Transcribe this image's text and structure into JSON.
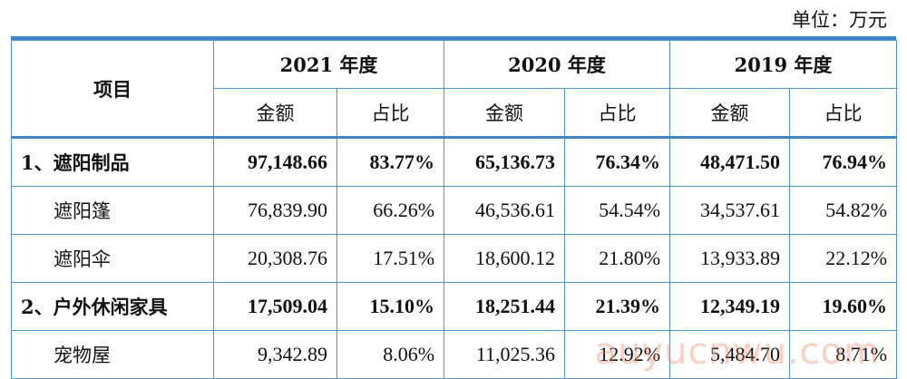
{
  "unit_label": "单位：万元",
  "header": {
    "item": "项目",
    "years": [
      "2021 年度",
      "2020 年度",
      "2019 年度"
    ],
    "amount": "金额",
    "ratio": "占比"
  },
  "rows": [
    {
      "name": "1、遮阳制品",
      "bold": true,
      "cells": [
        "97,148.66",
        "83.77%",
        "65,136.73",
        "76.34%",
        "48,471.50",
        "76.94%"
      ]
    },
    {
      "name": "遮阳篷",
      "bold": false,
      "cells": [
        "76,839.90",
        "66.26%",
        "46,536.61",
        "54.54%",
        "34,537.61",
        "54.82%"
      ]
    },
    {
      "name": "遮阳伞",
      "bold": false,
      "cells": [
        "20,308.76",
        "17.51%",
        "18,600.12",
        "21.80%",
        "13,933.89",
        "22.12%"
      ]
    },
    {
      "name": "2、户外休闲家具",
      "bold": true,
      "cells": [
        "17,509.04",
        "15.10%",
        "18,251.44",
        "21.39%",
        "12,349.19",
        "19.60%"
      ]
    },
    {
      "name": "宠物屋",
      "bold": false,
      "cells": [
        "9,342.89",
        "8.06%",
        "11,025.36",
        "12.92%",
        "5,484.70",
        "8.71%"
      ]
    }
  ],
  "watermark": "auyucnwu.com",
  "colors": {
    "rule": "#3a86c8",
    "grid": "#4f95d0"
  }
}
